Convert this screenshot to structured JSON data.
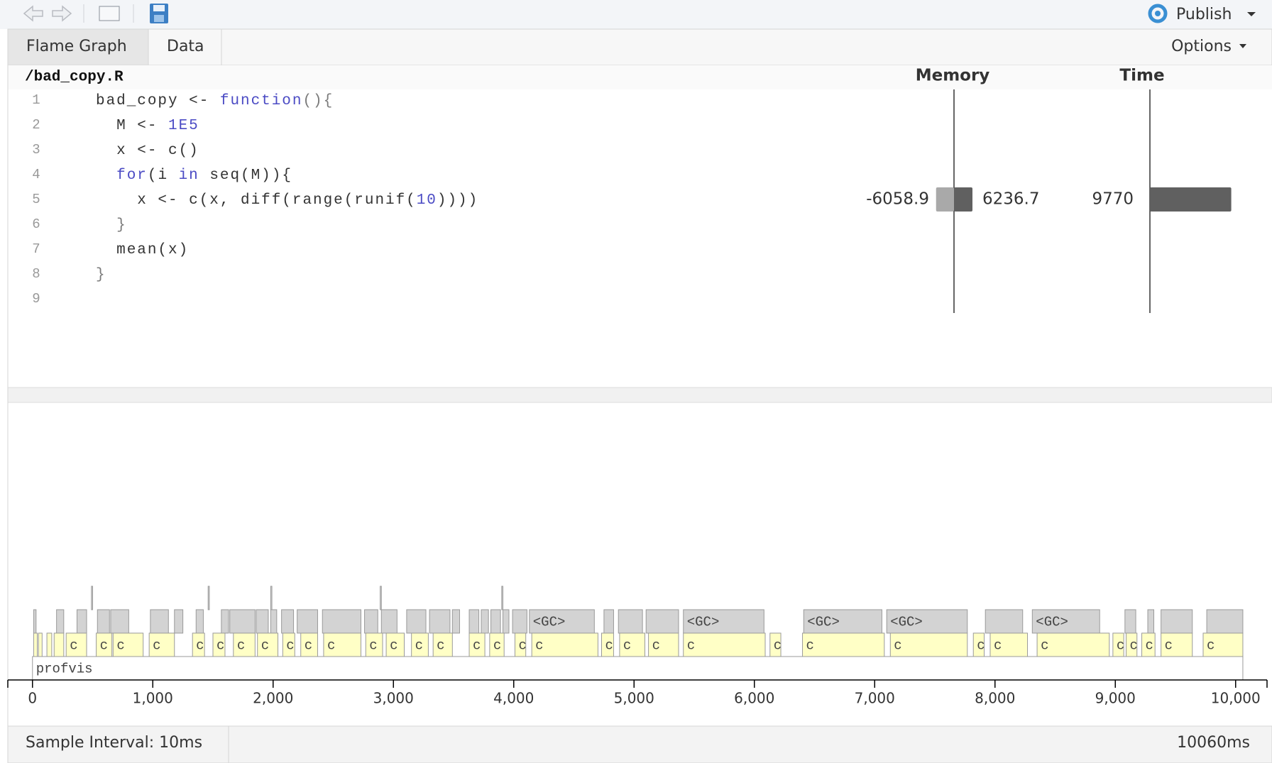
{
  "toolbar": {
    "publish": "Publish"
  },
  "tabs": [
    "Flame Graph",
    "Data"
  ],
  "options": "Options",
  "code": {
    "file": "/bad_copy.R",
    "memory_header": "Memory",
    "time_header": "Time",
    "lines": [
      {
        "number": 1,
        "tokens": [
          {
            "text": "bad_copy <- ",
            "color": "#333333"
          },
          {
            "text": "function",
            "color": "#4b4bc4"
          },
          {
            "text": "(){",
            "color": "#7a7a7a"
          }
        ]
      },
      {
        "number": 2,
        "tokens": [
          {
            "text": "  M <- ",
            "color": "#333333"
          },
          {
            "text": "1E5",
            "color": "#4b4bc4"
          }
        ]
      },
      {
        "number": 3,
        "tokens": [
          {
            "text": "  x <- c()",
            "color": "#333333"
          }
        ]
      },
      {
        "number": 4,
        "tokens": [
          {
            "text": "  for",
            "color": "#4b4bc4"
          },
          {
            "text": "(i ",
            "color": "#333333"
          },
          {
            "text": "in",
            "color": "#4b4bc4"
          },
          {
            "text": " seq(M)){",
            "color": "#333333"
          }
        ]
      },
      {
        "number": 5,
        "tokens": [
          {
            "text": "    x <- c(x, diff(range(runif(",
            "color": "#333333"
          },
          {
            "text": "10",
            "color": "#4b4bc4"
          },
          {
            "text": "))))",
            "color": "#333333"
          }
        ],
        "memory": [
          -6058.9,
          6236.7
        ],
        "time": 9770
      },
      {
        "number": 6,
        "tokens": [
          {
            "text": "  }",
            "color": "#7a7a7a"
          }
        ]
      },
      {
        "number": 7,
        "tokens": [
          {
            "text": "  mean(x)",
            "color": "#333333"
          }
        ]
      },
      {
        "number": 8,
        "tokens": [
          {
            "text": "}",
            "color": "#7a7a7a"
          }
        ]
      },
      {
        "number": 9,
        "tokens": []
      }
    ]
  },
  "flame": {
    "xlim": [
      -205,
      10261
    ],
    "xticks": [
      0,
      {
        "value": 1000,
        "label": "1,000"
      },
      {
        "value": 2000,
        "label": "2,000"
      },
      {
        "value": 3000,
        "label": "3,000"
      },
      {
        "value": 4000,
        "label": "4,000"
      },
      {
        "value": 5000,
        "label": "5,000"
      },
      {
        "value": 6000,
        "label": "6,000"
      },
      {
        "value": 7000,
        "label": "7,000"
      },
      {
        "value": 8000,
        "label": "8,000"
      },
      {
        "value": 9000,
        "label": "9,000"
      },
      {
        "value": 10000,
        "label": "10,000"
      }
    ],
    "rows": [
      {
        "color": "#ffffff",
        "blocks": [
          {
            "start": 0,
            "end": 10060,
            "label": "profvis"
          }
        ]
      },
      {
        "color": "#ffffc6",
        "blocks": [
          {
            "start": 10,
            "end": 40
          },
          {
            "start": 50,
            "end": 80
          },
          {
            "start": 120,
            "end": 160
          },
          {
            "start": 180,
            "end": 260
          },
          {
            "start": 280,
            "end": 450,
            "label": "c"
          },
          {
            "start": 530,
            "end": 660,
            "label": "c"
          },
          {
            "start": 670,
            "end": 920,
            "label": "c"
          },
          {
            "start": 970,
            "end": 1180,
            "label": "c"
          },
          {
            "start": 1330,
            "end": 1430,
            "label": "c"
          },
          {
            "start": 1500,
            "end": 1600,
            "label": "c"
          },
          {
            "start": 1670,
            "end": 1850,
            "label": "c"
          },
          {
            "start": 1870,
            "end": 2040,
            "label": "c"
          },
          {
            "start": 2080,
            "end": 2180,
            "label": "c"
          },
          {
            "start": 2230,
            "end": 2370,
            "label": "c"
          },
          {
            "start": 2420,
            "end": 2730,
            "label": "c"
          },
          {
            "start": 2770,
            "end": 2910,
            "label": "c"
          },
          {
            "start": 2940,
            "end": 3090,
            "label": "c"
          },
          {
            "start": 3150,
            "end": 3290,
            "label": "c"
          },
          {
            "start": 3330,
            "end": 3490,
            "label": "c"
          },
          {
            "start": 3630,
            "end": 3760,
            "label": "c"
          },
          {
            "start": 3800,
            "end": 3920,
            "label": "c"
          },
          {
            "start": 4010,
            "end": 4100,
            "label": "c"
          },
          {
            "start": 4150,
            "end": 4700,
            "label": "c"
          },
          {
            "start": 4730,
            "end": 4830,
            "label": "c"
          },
          {
            "start": 4880,
            "end": 5090,
            "label": "c"
          },
          {
            "start": 5120,
            "end": 5370,
            "label": "c"
          },
          {
            "start": 5410,
            "end": 6090,
            "label": "c"
          },
          {
            "start": 6130,
            "end": 6220,
            "label": "c"
          },
          {
            "start": 6400,
            "end": 7080,
            "label": "c"
          },
          {
            "start": 7130,
            "end": 7770,
            "label": "c"
          },
          {
            "start": 7820,
            "end": 7910,
            "label": "c"
          },
          {
            "start": 7960,
            "end": 8270,
            "label": "c"
          },
          {
            "start": 8350,
            "end": 8950,
            "label": "c"
          },
          {
            "start": 8980,
            "end": 9070,
            "label": "c"
          },
          {
            "start": 9090,
            "end": 9180,
            "label": "c"
          },
          {
            "start": 9220,
            "end": 9330,
            "label": "c"
          },
          {
            "start": 9380,
            "end": 9640,
            "label": "c"
          },
          {
            "start": 9730,
            "end": 10060,
            "label": "c"
          }
        ]
      },
      {
        "color": "#d3d3d3",
        "blocks": [
          {
            "start": 10,
            "end": 30
          },
          {
            "start": 200,
            "end": 260
          },
          {
            "start": 370,
            "end": 450
          },
          {
            "start": 540,
            "end": 640
          },
          {
            "start": 650,
            "end": 800
          },
          {
            "start": 980,
            "end": 1130
          },
          {
            "start": 1180,
            "end": 1250
          },
          {
            "start": 1360,
            "end": 1420
          },
          {
            "start": 1570,
            "end": 1630
          },
          {
            "start": 1640,
            "end": 1850
          },
          {
            "start": 1860,
            "end": 1960
          },
          {
            "start": 1980,
            "end": 2030
          },
          {
            "start": 2070,
            "end": 2170
          },
          {
            "start": 2200,
            "end": 2370
          },
          {
            "start": 2410,
            "end": 2730
          },
          {
            "start": 2760,
            "end": 2870
          },
          {
            "start": 2900,
            "end": 3030
          },
          {
            "start": 3110,
            "end": 3270
          },
          {
            "start": 3300,
            "end": 3470
          },
          {
            "start": 3490,
            "end": 3550
          },
          {
            "start": 3630,
            "end": 3710
          },
          {
            "start": 3730,
            "end": 3790
          },
          {
            "start": 3810,
            "end": 3890
          },
          {
            "start": 3910,
            "end": 3960
          },
          {
            "start": 3990,
            "end": 4110
          },
          {
            "start": 4130,
            "end": 4670,
            "label": "<GC>"
          },
          {
            "start": 4750,
            "end": 4830
          },
          {
            "start": 4870,
            "end": 5070
          },
          {
            "start": 5100,
            "end": 5370
          },
          {
            "start": 5410,
            "end": 6080,
            "label": "<GC>"
          },
          {
            "start": 6410,
            "end": 7060,
            "label": "<GC>"
          },
          {
            "start": 7100,
            "end": 7770,
            "label": "<GC>"
          },
          {
            "start": 7920,
            "end": 8230
          },
          {
            "start": 8310,
            "end": 8870,
            "label": "<GC>"
          },
          {
            "start": 9080,
            "end": 9170
          },
          {
            "start": 9270,
            "end": 9320
          },
          {
            "start": 9380,
            "end": 9640
          },
          {
            "start": 9760,
            "end": 10060
          }
        ]
      },
      {
        "color": "#d3d3d3",
        "blocks": [
          {
            "start": 490,
            "end": 500
          },
          {
            "start": 1460,
            "end": 1470
          },
          {
            "start": 1980,
            "end": 1990
          },
          {
            "start": 2890,
            "end": 2900
          },
          {
            "start": 3900,
            "end": 3910
          }
        ]
      }
    ]
  },
  "footer": {
    "sample_interval": "Sample Interval: 10ms",
    "total": {
      "value": 10060,
      "label": "10060ms"
    }
  }
}
